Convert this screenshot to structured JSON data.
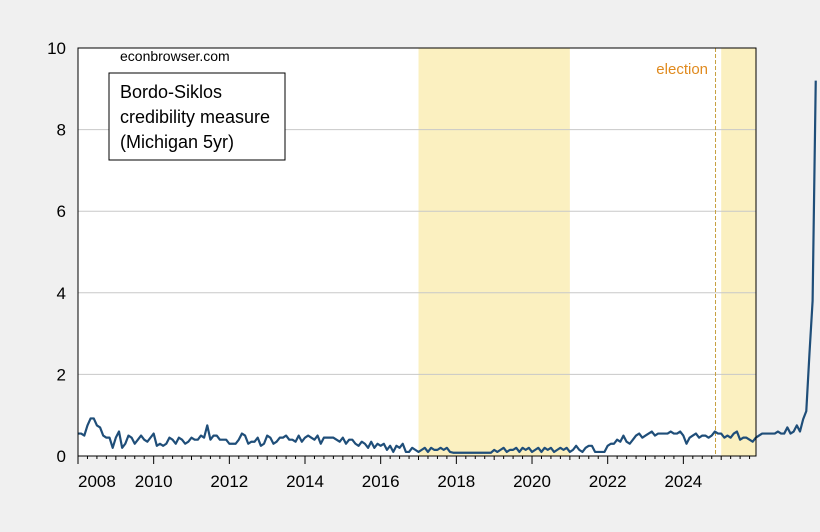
{
  "chart_data": {
    "type": "line",
    "watermark": "econbrowser.com",
    "legend_lines": [
      "Bordo-Siklos",
      "credibility measure",
      "(Michigan 5yr)"
    ],
    "event_label": "election",
    "xlim": [
      2008.0,
      2025.92
    ],
    "ylim": [
      0,
      10
    ],
    "x_ticks": [
      "2008",
      "2010",
      "2012",
      "2014",
      "2016",
      "2018",
      "2020",
      "2022",
      "2024"
    ],
    "y_ticks": [
      "0",
      "2",
      "4",
      "6",
      "8",
      "10"
    ],
    "shaded_periods": [
      [
        2017.0,
        2021.0
      ],
      [
        2025.0,
        2025.92
      ]
    ],
    "event_x": 2024.85,
    "grid": "horizontal",
    "colors": {
      "line": "#1f4e79",
      "shade": "#fbf0c0",
      "event": "#c8a040",
      "event_text": "#e08a1e",
      "grid": "#c8c8c8"
    },
    "series": [
      {
        "x_start": 2008.0,
        "step": 0.08333,
        "values": [
          0.55,
          0.55,
          0.5,
          0.75,
          0.92,
          0.92,
          0.75,
          0.7,
          0.5,
          0.45,
          0.45,
          0.2,
          0.45,
          0.6,
          0.2,
          0.3,
          0.5,
          0.45,
          0.3,
          0.4,
          0.5,
          0.4,
          0.35,
          0.45,
          0.55,
          0.25,
          0.3,
          0.25,
          0.3,
          0.45,
          0.4,
          0.3,
          0.45,
          0.4,
          0.3,
          0.35,
          0.45,
          0.4,
          0.4,
          0.5,
          0.45,
          0.75,
          0.4,
          0.5,
          0.5,
          0.4,
          0.4,
          0.4,
          0.3,
          0.3,
          0.3,
          0.4,
          0.55,
          0.5,
          0.3,
          0.35,
          0.35,
          0.45,
          0.25,
          0.3,
          0.5,
          0.45,
          0.3,
          0.35,
          0.45,
          0.45,
          0.5,
          0.4,
          0.4,
          0.35,
          0.5,
          0.35,
          0.45,
          0.5,
          0.45,
          0.4,
          0.5,
          0.3,
          0.45,
          0.45,
          0.45,
          0.45,
          0.4,
          0.35,
          0.45,
          0.3,
          0.4,
          0.4,
          0.3,
          0.25,
          0.35,
          0.3,
          0.2,
          0.35,
          0.2,
          0.3,
          0.25,
          0.3,
          0.15,
          0.25,
          0.1,
          0.25,
          0.2,
          0.3,
          0.1,
          0.1,
          0.2,
          0.15,
          0.1,
          0.15,
          0.2,
          0.1,
          0.2,
          0.15,
          0.15,
          0.2,
          0.15,
          0.2,
          0.1,
          0.08,
          0.08,
          0.08,
          0.08,
          0.08,
          0.08,
          0.08,
          0.08,
          0.08,
          0.08,
          0.08,
          0.08,
          0.08,
          0.15,
          0.1,
          0.15,
          0.2,
          0.1,
          0.15,
          0.15,
          0.2,
          0.1,
          0.2,
          0.15,
          0.2,
          0.1,
          0.15,
          0.2,
          0.1,
          0.2,
          0.15,
          0.2,
          0.1,
          0.15,
          0.2,
          0.15,
          0.2,
          0.1,
          0.15,
          0.25,
          0.15,
          0.1,
          0.2,
          0.25,
          0.25,
          0.1,
          0.1,
          0.1,
          0.1,
          0.25,
          0.3,
          0.3,
          0.4,
          0.35,
          0.5,
          0.35,
          0.3,
          0.4,
          0.5,
          0.55,
          0.45,
          0.5,
          0.55,
          0.6,
          0.5,
          0.55,
          0.55,
          0.55,
          0.55,
          0.6,
          0.55,
          0.55,
          0.6,
          0.5,
          0.3,
          0.45,
          0.5,
          0.55,
          0.45,
          0.5,
          0.5,
          0.45,
          0.5,
          0.6,
          0.55,
          0.55,
          0.45,
          0.5,
          0.45,
          0.55,
          0.6,
          0.4,
          0.45,
          0.45,
          0.4,
          0.35,
          0.45,
          0.5,
          0.55,
          0.55,
          0.55,
          0.55,
          0.55,
          0.6,
          0.55,
          0.55,
          0.7,
          0.55,
          0.6,
          0.75,
          0.6,
          0.9,
          1.1,
          2.5,
          3.8,
          9.2
        ]
      }
    ]
  }
}
